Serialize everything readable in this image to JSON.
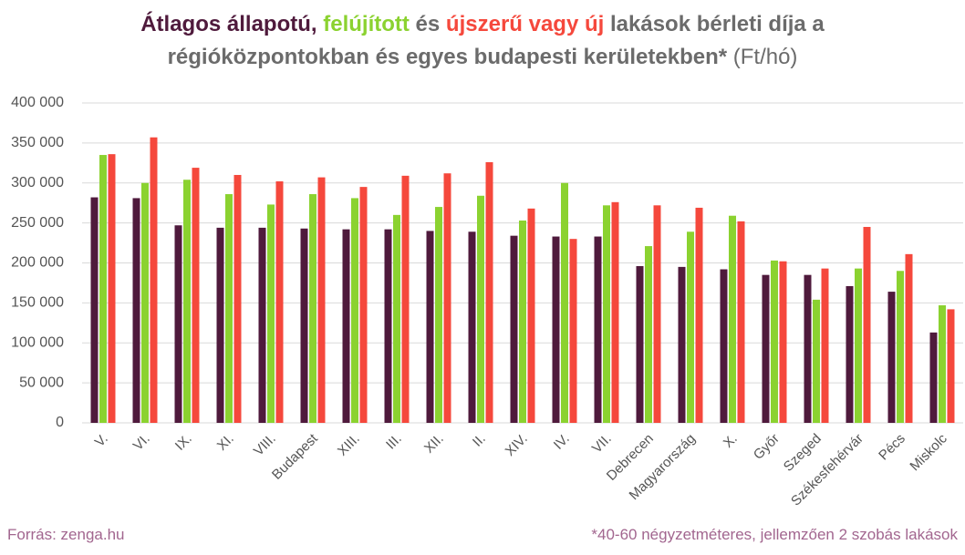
{
  "chart_data": {
    "type": "bar",
    "title_connectors": [
      ", ",
      " és ",
      " lakások bérleti díja a",
      "régióközpontokban és egyes budapesti kerületekben*",
      " (Ft/hó)"
    ],
    "source": "Forrás: zenga.hu",
    "footnote": "*40-60 négyzetméteres, jellemzően 2 szobás lakások",
    "categories": [
      "V.",
      "VI.",
      "IX.",
      "XI.",
      "VIII.",
      "Budapest",
      "XIII.",
      "III.",
      "XII.",
      "II.",
      "XIV.",
      "IV.",
      "VII.",
      "Debrecen",
      "Magyarország",
      "X.",
      "Győr",
      "Szeged",
      "Székesfehérvár",
      "Pécs",
      "Miskolc"
    ],
    "series": [
      {
        "name": "Átlagos állapotú",
        "color": "#4f1a3c",
        "values": [
          282000,
          281000,
          247000,
          244000,
          244000,
          243000,
          242000,
          242000,
          240000,
          239000,
          234000,
          233000,
          233000,
          196000,
          195000,
          192000,
          185000,
          185000,
          171000,
          164000,
          113000
        ]
      },
      {
        "name": "felújított",
        "color": "#8bd230",
        "values": [
          335000,
          300000,
          304000,
          286000,
          273000,
          286000,
          281000,
          260000,
          270000,
          284000,
          253000,
          300000,
          272000,
          221000,
          239000,
          259000,
          203000,
          154000,
          193000,
          190000,
          147000
        ]
      },
      {
        "name": "újszerű vagy új",
        "color": "#f5483c",
        "values": [
          336000,
          357000,
          319000,
          310000,
          302000,
          307000,
          295000,
          309000,
          312000,
          326000,
          268000,
          230000,
          276000,
          272000,
          269000,
          252000,
          202000,
          193000,
          245000,
          211000,
          142000
        ]
      }
    ],
    "ylim": [
      0,
      400000
    ],
    "yticks": [
      0,
      {
        "value": 50000,
        "label": "50 000"
      },
      {
        "value": 100000,
        "label": "100 000"
      },
      {
        "value": 150000,
        "label": "150 000"
      },
      {
        "value": 200000,
        "label": "200 000"
      },
      {
        "value": 250000,
        "label": "250 000"
      },
      {
        "value": 300000,
        "label": "300 000"
      },
      {
        "value": 350000,
        "label": "350 000"
      },
      {
        "value": 400000,
        "label": "400 000"
      }
    ],
    "grid": true
  }
}
